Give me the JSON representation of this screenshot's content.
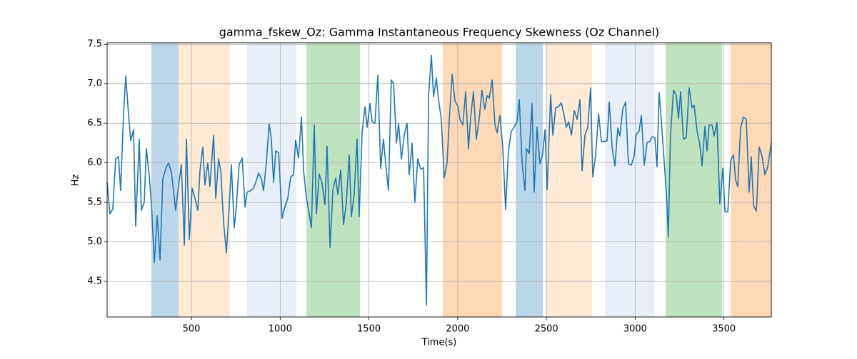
{
  "chart_data": {
    "type": "line",
    "title": "gamma_fskew_Oz: Gamma Instantaneous Frequency Skewness (Oz Channel)",
    "xlabel": "Time(s)",
    "ylabel": "Hz",
    "color": "#1f77b4",
    "grid": true,
    "xlim": [
      25,
      3767
    ],
    "ylim": [
      4.05,
      7.52
    ],
    "xticks": [
      500,
      1000,
      1500,
      2000,
      2500,
      3000,
      3500
    ],
    "yticks": [
      4.5,
      {
        "value": 5,
        "label": "5.0"
      },
      5.5,
      {
        "value": 6,
        "label": "6.0"
      },
      6.5,
      {
        "value": 7,
        "label": "7.0"
      },
      7.5
    ],
    "spans": [
      {
        "x0": 274,
        "x1": 427,
        "color": "#1f77b4"
      },
      {
        "x0": 427,
        "x1": 717,
        "color": "#ffbb78"
      },
      {
        "x0": 814,
        "x1": 1091,
        "color": "#aec7e8"
      },
      {
        "x0": 1148,
        "x1": 1450,
        "color": "#2ca02c"
      },
      {
        "x0": 1916,
        "x1": 2250,
        "color": "#ff7f0e"
      },
      {
        "x0": 2327,
        "x1": 2480,
        "color": "#1f77b4"
      },
      {
        "x0": 2500,
        "x1": 2757,
        "color": "#ffbb78"
      },
      {
        "x0": 2830,
        "x1": 3107,
        "color": "#aec7e8"
      },
      {
        "x0": 3172,
        "x1": 3490,
        "color": "#2ca02c"
      },
      {
        "x0": 3538,
        "x1": 3767,
        "color": "#ff7f0e"
      }
    ],
    "x": [
      25,
      41,
      57,
      73,
      89,
      101,
      118,
      130,
      146,
      158,
      174,
      186,
      206,
      218,
      234,
      246,
      262,
      274,
      291,
      307,
      323,
      339,
      359,
      371,
      387,
      399,
      411,
      427,
      443,
      460,
      472,
      488,
      504,
      520,
      536,
      548,
      564,
      576,
      592,
      604,
      625,
      637,
      653,
      665,
      681,
      697,
      713,
      725,
      741,
      753,
      769,
      786,
      802,
      814,
      834,
      850,
      862,
      878,
      894,
      906,
      922,
      938,
      950,
      963,
      975,
      991,
      1011,
      1027,
      1043,
      1059,
      1075,
      1087,
      1103,
      1120,
      1132,
      1148,
      1160,
      1176,
      1192,
      1204,
      1220,
      1236,
      1252,
      1264,
      1281,
      1297,
      1313,
      1325,
      1341,
      1357,
      1373,
      1389,
      1401,
      1417,
      1433,
      1445,
      1462,
      1478,
      1490,
      1506,
      1518,
      1534,
      1550,
      1566,
      1582,
      1594,
      1610,
      1626,
      1639,
      1655,
      1667,
      1683,
      1699,
      1715,
      1727,
      1743,
      1759,
      1775,
      1792,
      1808,
      1824,
      1836,
      1852,
      1864,
      1880,
      1892,
      1908,
      1924,
      1940,
      1953,
      1969,
      1985,
      2001,
      2013,
      2029,
      2045,
      2061,
      2073,
      2089,
      2105,
      2121,
      2137,
      2153,
      2166,
      2178,
      2194,
      2210,
      2222,
      2238,
      2254,
      2270,
      2286,
      2302,
      2318,
      2334,
      2347,
      2363,
      2379,
      2387,
      2403,
      2419,
      2431,
      2447,
      2463,
      2479,
      2492,
      2504,
      2524,
      2536,
      2552,
      2568,
      2584,
      2600,
      2612,
      2625,
      2641,
      2657,
      2673,
      2689,
      2701,
      2717,
      2733,
      2749,
      2761,
      2777,
      2794,
      2810,
      2826,
      2842,
      2854,
      2870,
      2886,
      2902,
      2914,
      2930,
      2946,
      2962,
      2978,
      2994,
      3006,
      3022,
      3035,
      3051,
      3067,
      3083,
      3095,
      3111,
      3123,
      3135,
      3151,
      3167,
      3179,
      3187,
      3199,
      3216,
      3232,
      3244,
      3256,
      3272,
      3288,
      3304,
      3320,
      3332,
      3349,
      3365,
      3377,
      3393,
      3405,
      3417,
      3433,
      3445,
      3461,
      3477,
      3494,
      3506,
      3522,
      3538,
      3554,
      3566,
      3578,
      3594,
      3610,
      3626,
      3642,
      3654,
      3667,
      3683,
      3699,
      3715,
      3731,
      3747,
      3767
    ],
    "values": [
      5.75,
      5.35,
      5.42,
      6.05,
      6.08,
      5.65,
      6.65,
      7.1,
      6.6,
      6.28,
      6.42,
      5.2,
      6.3,
      5.4,
      5.5,
      6.18,
      5.85,
      5.5,
      4.74,
      5.33,
      4.77,
      5.8,
      5.95,
      6.0,
      5.88,
      5.65,
      5.4,
      5.7,
      5.98,
      4.96,
      6.3,
      5.03,
      5.68,
      5.55,
      5.4,
      5.9,
      6.2,
      5.72,
      6.0,
      5.7,
      6.35,
      5.55,
      6.05,
      5.9,
      5.25,
      4.86,
      5.45,
      5.98,
      5.18,
      5.45,
      5.98,
      6.06,
      5.44,
      5.63,
      5.65,
      5.68,
      5.75,
      5.87,
      5.8,
      5.65,
      6.0,
      6.49,
      6.3,
      5.75,
      6.15,
      6.13,
      5.3,
      5.45,
      5.55,
      5.82,
      5.85,
      6.29,
      6.06,
      6.58,
      5.9,
      5.55,
      5.4,
      5.18,
      6.48,
      5.35,
      5.86,
      5.74,
      5.47,
      6.21,
      4.93,
      5.66,
      5.81,
      5.6,
      5.91,
      5.22,
      5.5,
      6.1,
      5.32,
      5.6,
      6.3,
      5.32,
      6.4,
      6.71,
      6.45,
      6.75,
      6.52,
      6.5,
      7.11,
      5.93,
      6.3,
      6.0,
      5.65,
      7.05,
      7.0,
      6.25,
      6.5,
      6.05,
      6.35,
      6.5,
      5.85,
      6.25,
      5.5,
      6.05,
      5.92,
      5.94,
      4.2,
      6.85,
      7.36,
      6.84,
      7.07,
      6.8,
      6.55,
      5.81,
      6.0,
      6.55,
      7.12,
      6.78,
      6.72,
      6.55,
      6.48,
      6.9,
      6.18,
      6.58,
      6.9,
      6.3,
      6.55,
      6.92,
      6.68,
      6.85,
      6.82,
      7.05,
      6.48,
      6.38,
      6.6,
      6.2,
      5.41,
      6.15,
      6.4,
      6.45,
      6.52,
      6.8,
      6.0,
      5.65,
      6.18,
      6.12,
      6.75,
      5.63,
      6.45,
      5.99,
      6.1,
      6.42,
      5.66,
      6.86,
      6.35,
      6.7,
      6.71,
      6.76,
      6.6,
      6.45,
      6.52,
      6.35,
      6.66,
      6.55,
      6.8,
      5.9,
      6.35,
      6.45,
      6.95,
      5.82,
      6.1,
      6.62,
      6.27,
      6.27,
      6.28,
      6.77,
      6.2,
      5.96,
      6.44,
      6.34,
      6.68,
      6.77,
      5.99,
      5.97,
      6.08,
      6.36,
      6.4,
      6.6,
      5.97,
      6.26,
      6.27,
      6.33,
      6.32,
      5.95,
      6.89,
      6.42,
      5.9,
      5.5,
      5.06,
      6.35,
      6.92,
      6.85,
      6.56,
      6.9,
      6.3,
      6.32,
      6.95,
      6.7,
      6.73,
      6.4,
      6.22,
      5.96,
      6.46,
      6.15,
      6.48,
      6.48,
      6.34,
      6.51,
      5.48,
      5.93,
      5.38,
      5.38,
      6.03,
      6.1,
      5.78,
      5.7,
      6.44,
      6.58,
      6.55,
      5.63,
      6.08,
      5.46,
      5.39,
      6.2,
      6.08,
      5.85,
      5.95,
      6.25
    ]
  }
}
